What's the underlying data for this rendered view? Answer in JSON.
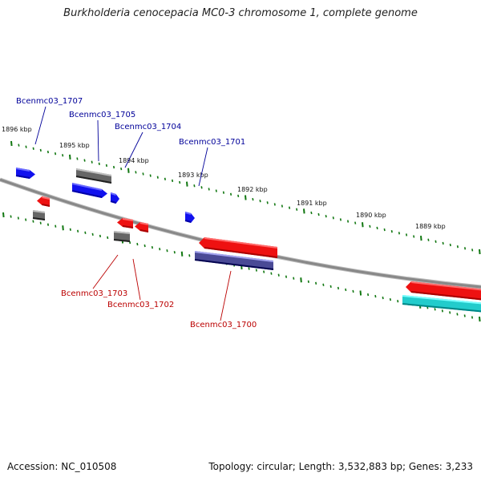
{
  "title": "Burkholderia cenocepacia MC0-3 chromosome 1, complete genome",
  "footer": {
    "accession": "Accession: NC_010508",
    "stats": "Topology: circular; Length: 3,532,883 bp; Genes: 3,233"
  },
  "colors": {
    "forward_gene": "#1111ee",
    "reverse_gene": "#ee1111",
    "grey_feature": "#666666",
    "navy_feature": "#4a4a96",
    "cyan_feature": "#22cccc",
    "tick": "#117711",
    "backbone": "#888888",
    "forward_label": "#000099",
    "reverse_label": "#bb0000"
  },
  "scale_ticks": [
    "1896 kbp",
    "1895 kbp",
    "1894 kbp",
    "1893 kbp",
    "1892 kbp",
    "1891 kbp",
    "1890 kbp",
    "1889 kbp"
  ],
  "gene_labels": {
    "forward": [
      "Bcenmc03_1707",
      "Bcenmc03_1705",
      "Bcenmc03_1704",
      "Bcenmc03_1701"
    ],
    "reverse": [
      "Bcenmc03_1703",
      "Bcenmc03_1702",
      "Bcenmc03_1700"
    ]
  }
}
